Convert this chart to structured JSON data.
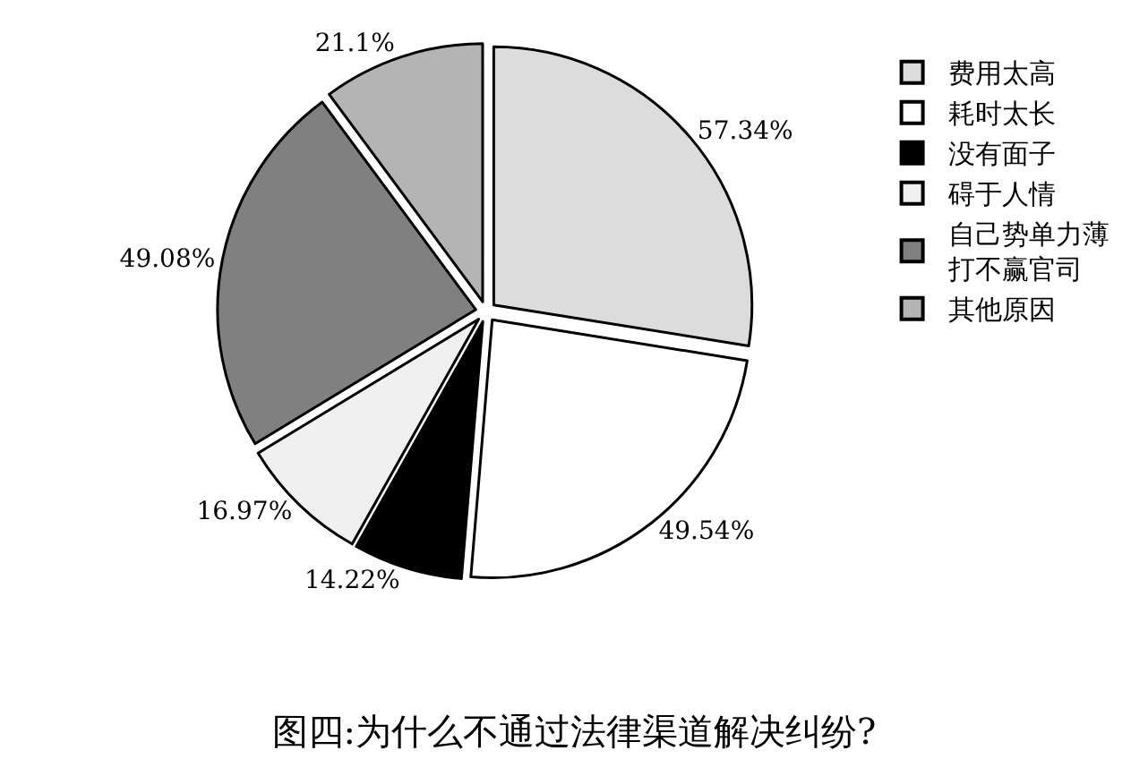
{
  "chart_data": {
    "type": "pie",
    "title": "图四:为什么不通过法律渠道解决纠纷?",
    "categories": [
      "费用太高",
      "耗时太长",
      "没有面子",
      "碍于人情",
      "自己势单力薄打不赢官司",
      "其他原因"
    ],
    "values": [
      57.34,
      49.54,
      14.22,
      16.97,
      49.08,
      21.1
    ],
    "value_labels": [
      "57.34%",
      "49.54%",
      "14.22%",
      "16.97%",
      "49.08%",
      "21.1%"
    ],
    "colors": [
      "#dcdcdc",
      "#ffffff",
      "#000000",
      "#f0f0f0",
      "#808080",
      "#b4b4b4"
    ],
    "legend": "right"
  }
}
